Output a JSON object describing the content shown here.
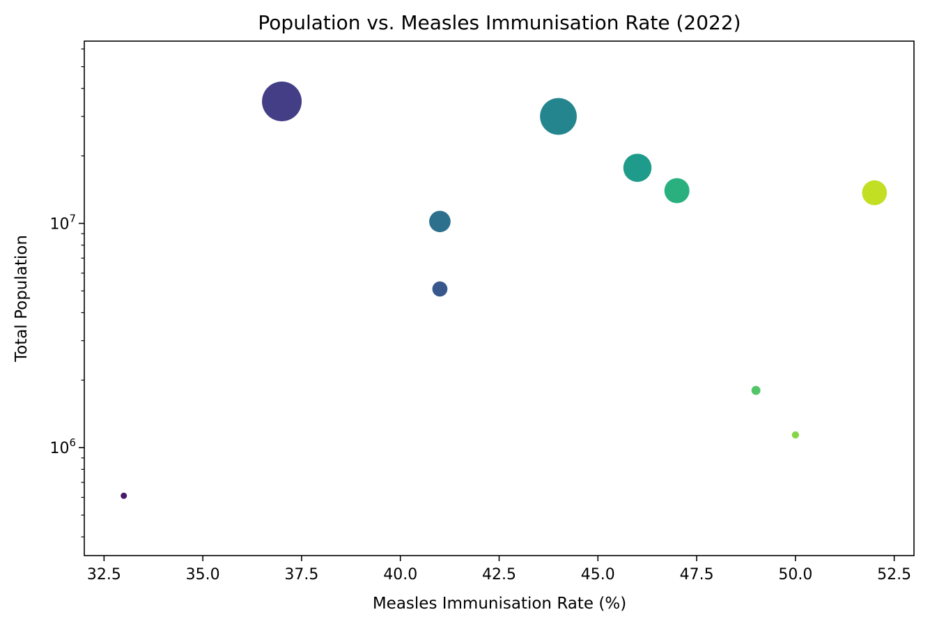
{
  "chart_data": {
    "type": "scatter",
    "title": "Population vs. Measles Immunisation Rate (2022)",
    "xlabel": "Measles Immunisation Rate (%)",
    "ylabel": "Total Population",
    "xlim": [
      32,
      53
    ],
    "ylim": [
      330000,
      65000000
    ],
    "yscale": "log",
    "grid": false,
    "x_ticks": [
      {
        "value": 32.5,
        "label": "32.5"
      },
      {
        "value": 35.0,
        "label": "35.0"
      },
      {
        "value": 37.5,
        "label": "37.5"
      },
      {
        "value": 40.0,
        "label": "40.0"
      },
      {
        "value": 42.5,
        "label": "42.5"
      },
      {
        "value": 45.0,
        "label": "45.0"
      },
      {
        "value": 47.5,
        "label": "47.5"
      },
      {
        "value": 50.0,
        "label": "50.0"
      },
      {
        "value": 52.5,
        "label": "52.5"
      }
    ],
    "y_ticks": [
      {
        "value": 1000000,
        "base": "10",
        "exp": "6"
      },
      {
        "value": 10000000,
        "base": "10",
        "exp": "7"
      }
    ],
    "points": [
      {
        "x": 33,
        "y": 610000,
        "color": "#481a6c"
      },
      {
        "x": 37,
        "y": 35000000,
        "color": "#433e85"
      },
      {
        "x": 41,
        "y": 5100000,
        "color": "#38588c"
      },
      {
        "x": 41,
        "y": 10200000,
        "color": "#2d708e"
      },
      {
        "x": 44,
        "y": 30000000,
        "color": "#25858e"
      },
      {
        "x": 46,
        "y": 17700000,
        "color": "#1e9b8a"
      },
      {
        "x": 47,
        "y": 14000000,
        "color": "#2ab07f"
      },
      {
        "x": 49,
        "y": 1800000,
        "color": "#52c569"
      },
      {
        "x": 50,
        "y": 1140000,
        "color": "#86d549"
      },
      {
        "x": 52,
        "y": 13700000,
        "color": "#c2df23"
      }
    ]
  }
}
